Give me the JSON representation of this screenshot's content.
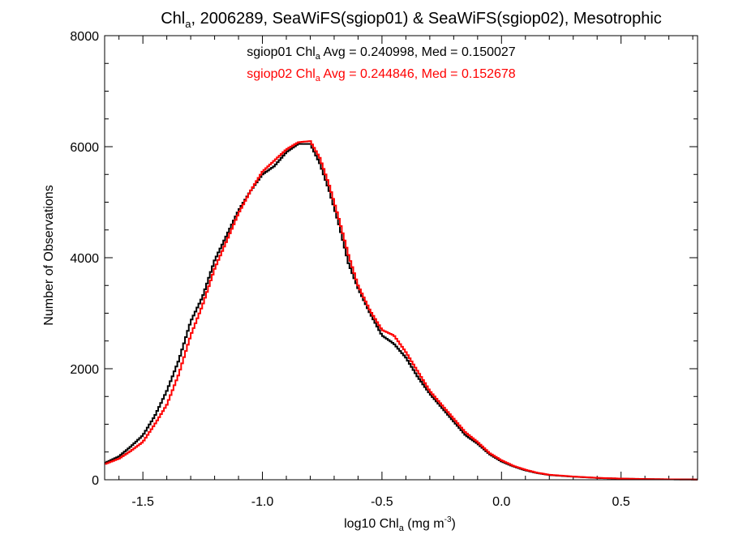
{
  "chart_data": {
    "type": "line",
    "title": {
      "pre": "Chl",
      "sub": "a",
      "post": ", 2006289, SeaWiFS(sgiop01) & SeaWiFS(sgiop02), Mesotrophic"
    },
    "xlabel": {
      "pre": "log10 Chl",
      "sub": "a",
      "mid": " (mg m",
      "sup": "-3",
      "post": ")"
    },
    "ylabel": "Number of Observations",
    "xlim": [
      -1.66,
      0.82
    ],
    "ylim": [
      0,
      8000
    ],
    "x_ticks": [
      -1.5,
      -1.0,
      -0.5,
      0.0,
      0.5
    ],
    "x_tick_labels": [
      "-1.5",
      "-1.0",
      "-0.5",
      "0.0",
      "0.5"
    ],
    "y_ticks": [
      0,
      2000,
      4000,
      6000,
      8000
    ],
    "y_tick_labels": [
      "0",
      "2000",
      "4000",
      "6000",
      "8000"
    ],
    "annotations": [
      {
        "pre": "sgiop01 Chl",
        "sub": "a",
        "post": " Avg = 0.240998, Med = 0.150027",
        "color": "#000000"
      },
      {
        "pre": "sgiop02 Chl",
        "sub": "a",
        "post": " Avg = 0.244846, Med = 0.152678",
        "color": "#ff0000"
      }
    ],
    "series": [
      {
        "color": "#000000",
        "x": [
          -1.66,
          -1.6,
          -1.55,
          -1.5,
          -1.45,
          -1.4,
          -1.35,
          -1.3,
          -1.25,
          -1.2,
          -1.15,
          -1.1,
          -1.05,
          -1.0,
          -0.95,
          -0.9,
          -0.85,
          -0.8,
          -0.76,
          -0.72,
          -0.68,
          -0.64,
          -0.6,
          -0.55,
          -0.5,
          -0.45,
          -0.4,
          -0.35,
          -0.3,
          -0.25,
          -0.2,
          -0.15,
          -0.1,
          -0.05,
          0.0,
          0.05,
          0.1,
          0.15,
          0.2,
          0.3,
          0.4,
          0.5,
          0.6,
          0.7,
          0.82
        ],
        "values": [
          300,
          420,
          600,
          800,
          1150,
          1600,
          2150,
          2850,
          3300,
          3950,
          4400,
          4850,
          5200,
          5500,
          5650,
          5900,
          6050,
          6050,
          5700,
          5200,
          4600,
          3900,
          3450,
          3000,
          2600,
          2450,
          2200,
          1850,
          1550,
          1300,
          1050,
          800,
          650,
          460,
          330,
          240,
          170,
          120,
          85,
          55,
          32,
          20,
          12,
          7,
          4
        ]
      },
      {
        "color": "#ff0000",
        "x": [
          -1.66,
          -1.6,
          -1.55,
          -1.5,
          -1.45,
          -1.4,
          -1.35,
          -1.3,
          -1.25,
          -1.2,
          -1.15,
          -1.1,
          -1.05,
          -1.0,
          -0.95,
          -0.9,
          -0.85,
          -0.8,
          -0.76,
          -0.72,
          -0.68,
          -0.64,
          -0.6,
          -0.55,
          -0.5,
          -0.45,
          -0.4,
          -0.35,
          -0.3,
          -0.25,
          -0.2,
          -0.15,
          -0.1,
          -0.05,
          0.0,
          0.05,
          0.1,
          0.15,
          0.2,
          0.3,
          0.4,
          0.5,
          0.6,
          0.7,
          0.82
        ],
        "values": [
          280,
          380,
          520,
          680,
          1000,
          1350,
          1900,
          2600,
          3150,
          3800,
          4300,
          4800,
          5200,
          5550,
          5750,
          5950,
          6080,
          6100,
          5800,
          5300,
          4700,
          4050,
          3500,
          3050,
          2700,
          2600,
          2300,
          1950,
          1600,
          1350,
          1100,
          850,
          680,
          480,
          350,
          250,
          180,
          125,
          90,
          58,
          34,
          21,
          13,
          8,
          4
        ]
      }
    ]
  }
}
